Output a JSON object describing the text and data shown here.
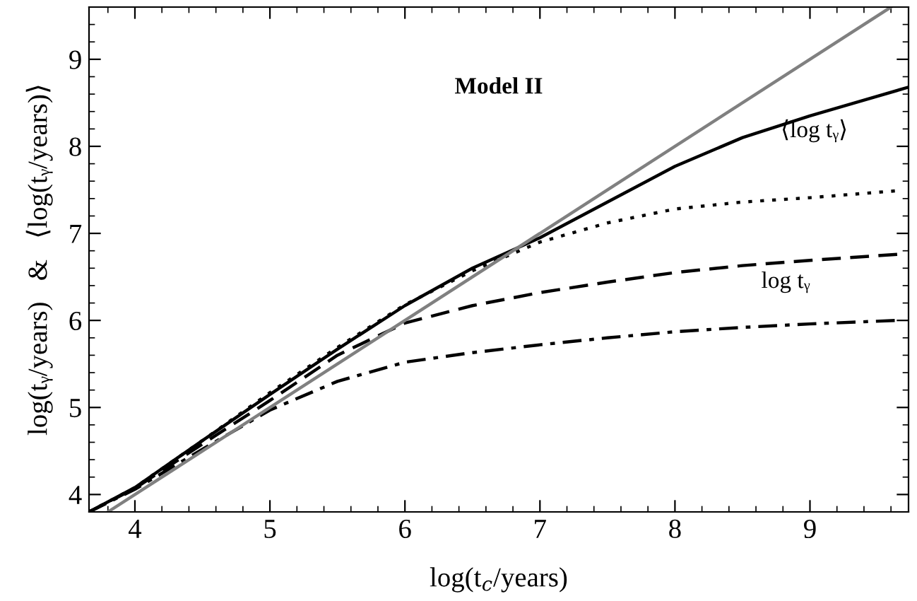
{
  "chart_data": {
    "type": "line",
    "xlabel": "log(t$_{c}$/years)",
    "ylabel": "log(tᵧ/years)   &   ⟨log(tᵧ/years)⟩",
    "xlim": [
      3.66,
      9.73
    ],
    "ylim": [
      3.8,
      9.6
    ],
    "xticks": [
      4,
      5,
      6,
      7,
      8,
      9
    ],
    "yticks": [
      4,
      5,
      6,
      7,
      8,
      9
    ],
    "grid": false,
    "legend": false,
    "marker": "none",
    "series": [
      {
        "color": "#000000",
        "line_style": "solid",
        "x": [
          3.66,
          4,
          4.5,
          5,
          5.5,
          6,
          6.5,
          7,
          7.5,
          8,
          8.5,
          9,
          9.4,
          9.73
        ],
        "values": [
          3.8,
          4.08,
          4.62,
          5.15,
          5.67,
          6.17,
          6.6,
          6.95,
          7.36,
          7.77,
          8.1,
          8.35,
          8.53,
          8.68
        ]
      },
      {
        "color": "#000000",
        "line_style": "dotted",
        "x": [
          3.66,
          4,
          4.5,
          5,
          5.5,
          6,
          6.5,
          7,
          7.5,
          8,
          8.5,
          9,
          9.65
        ],
        "values": [
          3.8,
          4.08,
          4.62,
          5.17,
          5.69,
          6.18,
          6.57,
          6.9,
          7.12,
          7.28,
          7.36,
          7.41,
          7.49
        ]
      },
      {
        "color": "#000000",
        "line_style": "dashed",
        "x": [
          3.66,
          4,
          4.5,
          5,
          5.5,
          6,
          6.5,
          7,
          7.5,
          8,
          8.5,
          9,
          9.65
        ],
        "values": [
          3.8,
          4.07,
          4.58,
          5.08,
          5.6,
          5.97,
          6.17,
          6.32,
          6.44,
          6.55,
          6.63,
          6.69,
          6.76
        ]
      },
      {
        "color": "#000000",
        "line_style": "dashdot",
        "x": [
          3.66,
          4,
          4.5,
          5,
          5.5,
          6,
          6.5,
          7,
          7.5,
          8,
          8.5,
          9,
          9.65
        ],
        "values": [
          3.8,
          4.06,
          4.52,
          4.97,
          5.3,
          5.52,
          5.63,
          5.72,
          5.8,
          5.87,
          5.92,
          5.96,
          6.0
        ]
      },
      {
        "color": "#808080",
        "line_style": "solid",
        "x": [
          3.8,
          9.6
        ],
        "values": [
          3.8,
          9.6
        ]
      }
    ],
    "annotations": [
      "Model II",
      "⟨log tᵧ⟩",
      "log tᵧ"
    ]
  }
}
